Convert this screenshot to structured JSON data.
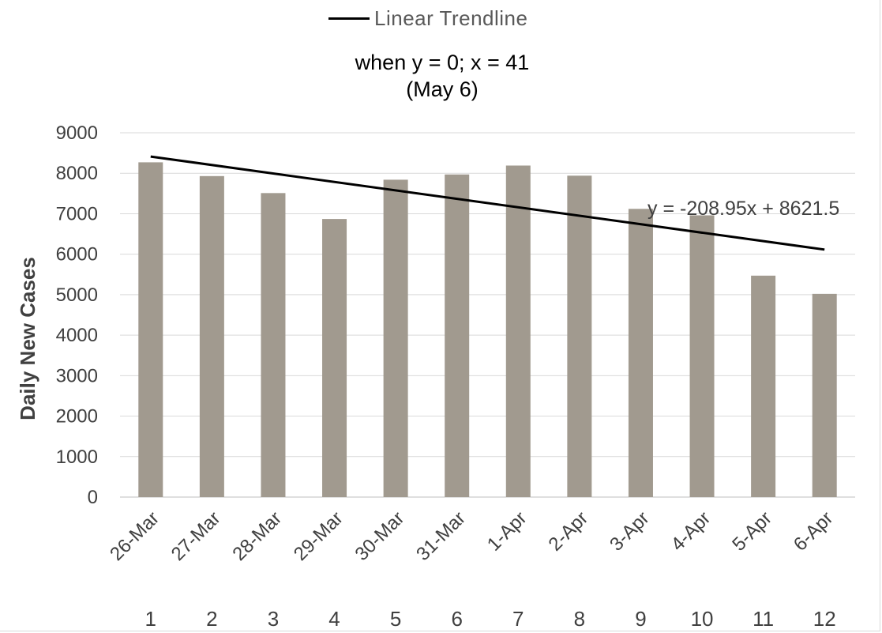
{
  "legend": {
    "label": "Linear Trendline"
  },
  "annotation": {
    "line1": "when y = 0; x = 41",
    "line2": "(May 6)"
  },
  "chart_data": {
    "type": "bar",
    "categories": [
      "26-Mar",
      "27-Mar",
      "28-Mar",
      "29-Mar",
      "30-Mar",
      "31-Mar",
      "1-Apr",
      "2-Apr",
      "3-Apr",
      "4-Apr",
      "5-Apr",
      "6-Apr"
    ],
    "index_labels": [
      "1",
      "2",
      "3",
      "4",
      "5",
      "6",
      "7",
      "8",
      "9",
      "10",
      "11",
      "12"
    ],
    "values": [
      8270,
      7930,
      7510,
      6870,
      7840,
      7970,
      8190,
      7940,
      7120,
      6960,
      5470,
      5020
    ],
    "ylabel": "Daily New Cases",
    "xlabel": "",
    "ylim": [
      0,
      9000
    ],
    "yticks": [
      0,
      1000,
      2000,
      3000,
      4000,
      5000,
      6000,
      7000,
      8000,
      9000
    ],
    "grid": true,
    "bar_color": "#a19a8f",
    "trendline": {
      "label": "Linear Trendline",
      "slope": -208.95,
      "intercept": 8621.5,
      "equation": "y = -208.95x + 8621.5",
      "color": "#000000"
    }
  }
}
